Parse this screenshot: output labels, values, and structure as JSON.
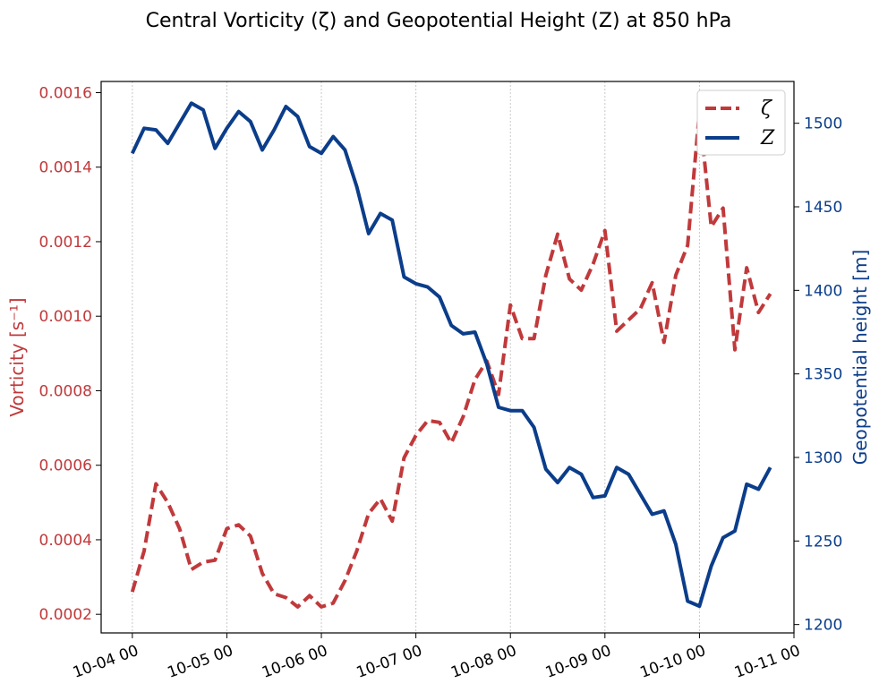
{
  "chart_data": {
    "type": "line",
    "title": "Central Vorticity (ζ) and Geopotential Height (Z) at 850 hPa",
    "ylabel_left": "Vorticity [s⁻¹]",
    "ylabel_right": "Geopotential height [m]",
    "x_tick_labels": [
      "10-04 00",
      "10-05 00",
      "10-06 00",
      "10-07 00",
      "10-08 00",
      "10-09 00",
      "10-10 00",
      "10-11 00"
    ],
    "x_tick_days": [
      0,
      1,
      2,
      3,
      4,
      5,
      6,
      7
    ],
    "xlim": [
      -0.33,
      7.0
    ],
    "ylim_left": [
      0.00015,
      0.00163
    ],
    "ylim_right": [
      1195,
      1525
    ],
    "yticks_left": [
      0.0002,
      0.0004,
      0.0006,
      0.0008,
      0.001,
      0.0012,
      0.0014,
      0.0016
    ],
    "yticks_left_labels": [
      "0.0002",
      "0.0004",
      "0.0006",
      "0.0008",
      "0.0010",
      "0.0012",
      "0.0014",
      "0.0016"
    ],
    "yticks_right": [
      1200,
      1250,
      1300,
      1350,
      1400,
      1450,
      1500
    ],
    "yticks_right_labels": [
      "1200",
      "1250",
      "1300",
      "1350",
      "1400",
      "1450",
      "1500"
    ],
    "grid": "x-dotted",
    "legend_position": "top-right",
    "x": [
      0,
      0.125,
      0.25,
      0.375,
      0.5,
      0.625,
      0.75,
      0.875,
      1.0,
      1.125,
      1.25,
      1.375,
      1.5,
      1.625,
      1.75,
      1.875,
      2.0,
      2.125,
      2.25,
      2.375,
      2.5,
      2.625,
      2.75,
      2.875,
      3.0,
      3.125,
      3.25,
      3.375,
      3.5,
      3.625,
      3.75,
      3.875,
      4.0,
      4.125,
      4.25,
      4.375,
      4.5,
      4.625,
      4.75,
      4.875,
      5.0,
      5.125,
      5.25,
      5.375,
      5.5,
      5.625,
      5.75,
      5.875,
      6.0,
      6.125,
      6.25,
      6.375,
      6.5,
      6.625,
      6.75
    ],
    "series": [
      {
        "name": "ζ",
        "axis": "left",
        "color": "#c0393b",
        "style": "dashed",
        "values": [
          0.00026,
          0.00037,
          0.00055,
          0.0005,
          0.00043,
          0.00032,
          0.00034,
          0.000345,
          0.00043,
          0.00044,
          0.00041,
          0.00031,
          0.000255,
          0.000245,
          0.00022,
          0.00025,
          0.00022,
          0.00023,
          0.00029,
          0.00037,
          0.00047,
          0.00051,
          0.00045,
          0.00062,
          0.00068,
          0.00072,
          0.000715,
          0.00066,
          0.00073,
          0.00083,
          0.00088,
          0.00079,
          0.00103,
          0.00094,
          0.00094,
          0.00111,
          0.00122,
          0.0011,
          0.00107,
          0.00114,
          0.00123,
          0.00096,
          0.00099,
          0.00102,
          0.00109,
          0.00093,
          0.00111,
          0.00119,
          0.00155,
          0.00124,
          0.00129,
          0.00091,
          0.00113,
          0.00101,
          0.00106
        ]
      },
      {
        "name": "Z",
        "axis": "right",
        "color": "#0b3d8a",
        "style": "solid",
        "values": [
          1482,
          1497,
          1496,
          1488,
          1500,
          1512,
          1508,
          1485,
          1497,
          1507,
          1501,
          1484,
          1496,
          1510,
          1504,
          1486,
          1482,
          1492,
          1484,
          1462,
          1434,
          1446,
          1442,
          1408,
          1404,
          1402,
          1396,
          1379,
          1374,
          1375,
          1356,
          1330,
          1328,
          1328,
          1318,
          1293,
          1285,
          1294,
          1290,
          1276,
          1277,
          1294,
          1290,
          1278,
          1266,
          1268,
          1248,
          1214,
          1211,
          1235,
          1252,
          1256,
          1284,
          1281,
          1294
        ]
      }
    ]
  }
}
